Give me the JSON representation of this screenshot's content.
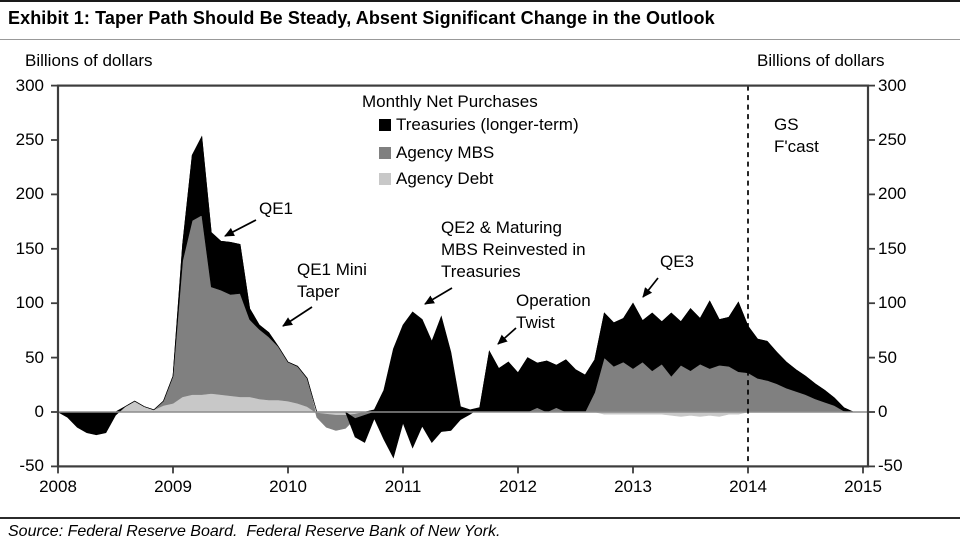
{
  "title": "Exhibit 1: Taper Path Should Be Steady, Absent Significant Change in the Outlook",
  "axes": {
    "left_label": "Billions of dollars",
    "right_label": "Billions of dollars",
    "y_ticks": [
      300,
      250,
      200,
      150,
      100,
      50,
      0,
      -50
    ],
    "x_ticks": [
      "2008",
      "2009",
      "2010",
      "2011",
      "2012",
      "2013",
      "2014",
      "2015"
    ],
    "y_min": -50,
    "y_max": 300
  },
  "legend": {
    "title": "Monthly Net Purchases",
    "items": [
      {
        "label": "Treasuries (longer-term)",
        "color": "#000000"
      },
      {
        "label": "Agency MBS",
        "color": "#808080"
      },
      {
        "label": "Agency Debt",
        "color": "#c8c8c8"
      }
    ]
  },
  "annotations": {
    "qe1": "QE1",
    "qe1_mini_taper": "QE1 Mini\nTaper",
    "qe2": "QE2 & Maturing\nMBS Reinvested in\nTreasuries",
    "op_twist": "Operation\nTwist",
    "qe3": "QE3",
    "gs_fcast": "GS\nF'cast",
    "forecast_divider_year": "2014"
  },
  "source": "Source: Federal Reserve Board.  Federal Reserve Bank of New York.",
  "chart_data": {
    "type": "area",
    "stacked": true,
    "title": "Monthly Net Purchases",
    "ylabel": "Billions of dollars",
    "ylim": [
      -50,
      300
    ],
    "x_start": "2008-01",
    "x_end": "2014-12",
    "points_per_year": 12,
    "x_tick_years": [
      2008,
      2009,
      2010,
      2011,
      2012,
      2013,
      2014,
      2015
    ],
    "gridlines": false,
    "zero_line": true,
    "forecast_divider_x": 2014.0,
    "series": [
      {
        "name": "Agency Debt",
        "color": "#c8c8c8",
        "values": [
          0,
          0,
          0,
          0,
          0,
          0,
          0,
          5,
          10,
          5,
          2,
          6,
          8,
          14,
          16,
          16,
          17,
          16,
          15,
          14,
          14,
          12,
          11,
          11,
          10,
          8,
          5,
          -1,
          -2,
          -3,
          -3,
          -2,
          0,
          0,
          0,
          0,
          0,
          0,
          0,
          0,
          0,
          0,
          0,
          0,
          0,
          0,
          0,
          0,
          0,
          0,
          0,
          0,
          0,
          0,
          0,
          0,
          0,
          -2,
          -2,
          -2,
          -2,
          -2,
          -2,
          -2,
          -3,
          -4,
          -3,
          -4,
          -3,
          -4,
          -2,
          -2,
          0,
          0,
          0,
          0,
          0,
          0,
          0,
          0,
          0,
          0,
          0,
          0
        ]
      },
      {
        "name": "Agency MBS",
        "color": "#808080",
        "values": [
          0,
          0,
          0,
          0,
          0,
          0,
          0,
          0,
          0,
          0,
          0,
          4,
          25,
          125,
          160,
          165,
          98,
          96,
          93,
          95,
          71,
          64,
          58,
          49,
          36,
          34,
          26,
          -4,
          -12,
          -14,
          -12,
          -4,
          -3,
          0,
          0,
          0,
          0,
          0,
          0,
          0,
          0,
          0,
          0,
          0,
          0,
          0,
          0,
          0,
          0,
          0,
          4,
          0,
          4,
          0,
          0,
          0,
          18,
          50,
          42,
          46,
          40,
          46,
          38,
          44,
          33,
          43,
          38,
          44,
          40,
          43,
          42,
          37,
          36,
          31,
          29,
          26,
          22,
          19,
          16,
          12,
          9,
          6,
          1,
          0
        ]
      },
      {
        "name": "Treasuries (longer-term)",
        "color": "#000000",
        "values": [
          0,
          -5,
          -14,
          -19,
          -21,
          -19,
          -3,
          0,
          0,
          0,
          0,
          0,
          0,
          15,
          60,
          72,
          50,
          45,
          48,
          45,
          10,
          4,
          4,
          0,
          0,
          0,
          0,
          0,
          0,
          0,
          0,
          0,
          0,
          2,
          20,
          58,
          80,
          92,
          85,
          65,
          88,
          55,
          5,
          2,
          4,
          56,
          40,
          46,
          36,
          50,
          41,
          47,
          39,
          48,
          39,
          34,
          30,
          41,
          40,
          40,
          60,
          38,
          53,
          39,
          58,
          40,
          57,
          42,
          62,
          42,
          45,
          64,
          43,
          36,
          36,
          29,
          24,
          20,
          17,
          14,
          11,
          7,
          3,
          0
        ]
      },
      {
        "name": "Net redemptions (black area below zero)",
        "color": "#000000",
        "values": [
          0,
          0,
          0,
          0,
          0,
          0,
          0,
          0,
          0,
          0,
          0,
          0,
          0,
          0,
          0,
          0,
          0,
          0,
          0,
          0,
          0,
          0,
          0,
          0,
          0,
          0,
          0,
          0,
          0,
          0,
          0,
          -17,
          -25,
          -6,
          -25,
          -42,
          -10,
          -33,
          -13,
          -28,
          -18,
          -17,
          -7,
          -2,
          0,
          0,
          0,
          0,
          0,
          0,
          0,
          0,
          0,
          0,
          0,
          0,
          0,
          0,
          0,
          0,
          0,
          0,
          0,
          0,
          0,
          0,
          0,
          0,
          0,
          0,
          0,
          0,
          0,
          0,
          0,
          0,
          0,
          0,
          0,
          0,
          0,
          0,
          0,
          0
        ]
      }
    ]
  }
}
